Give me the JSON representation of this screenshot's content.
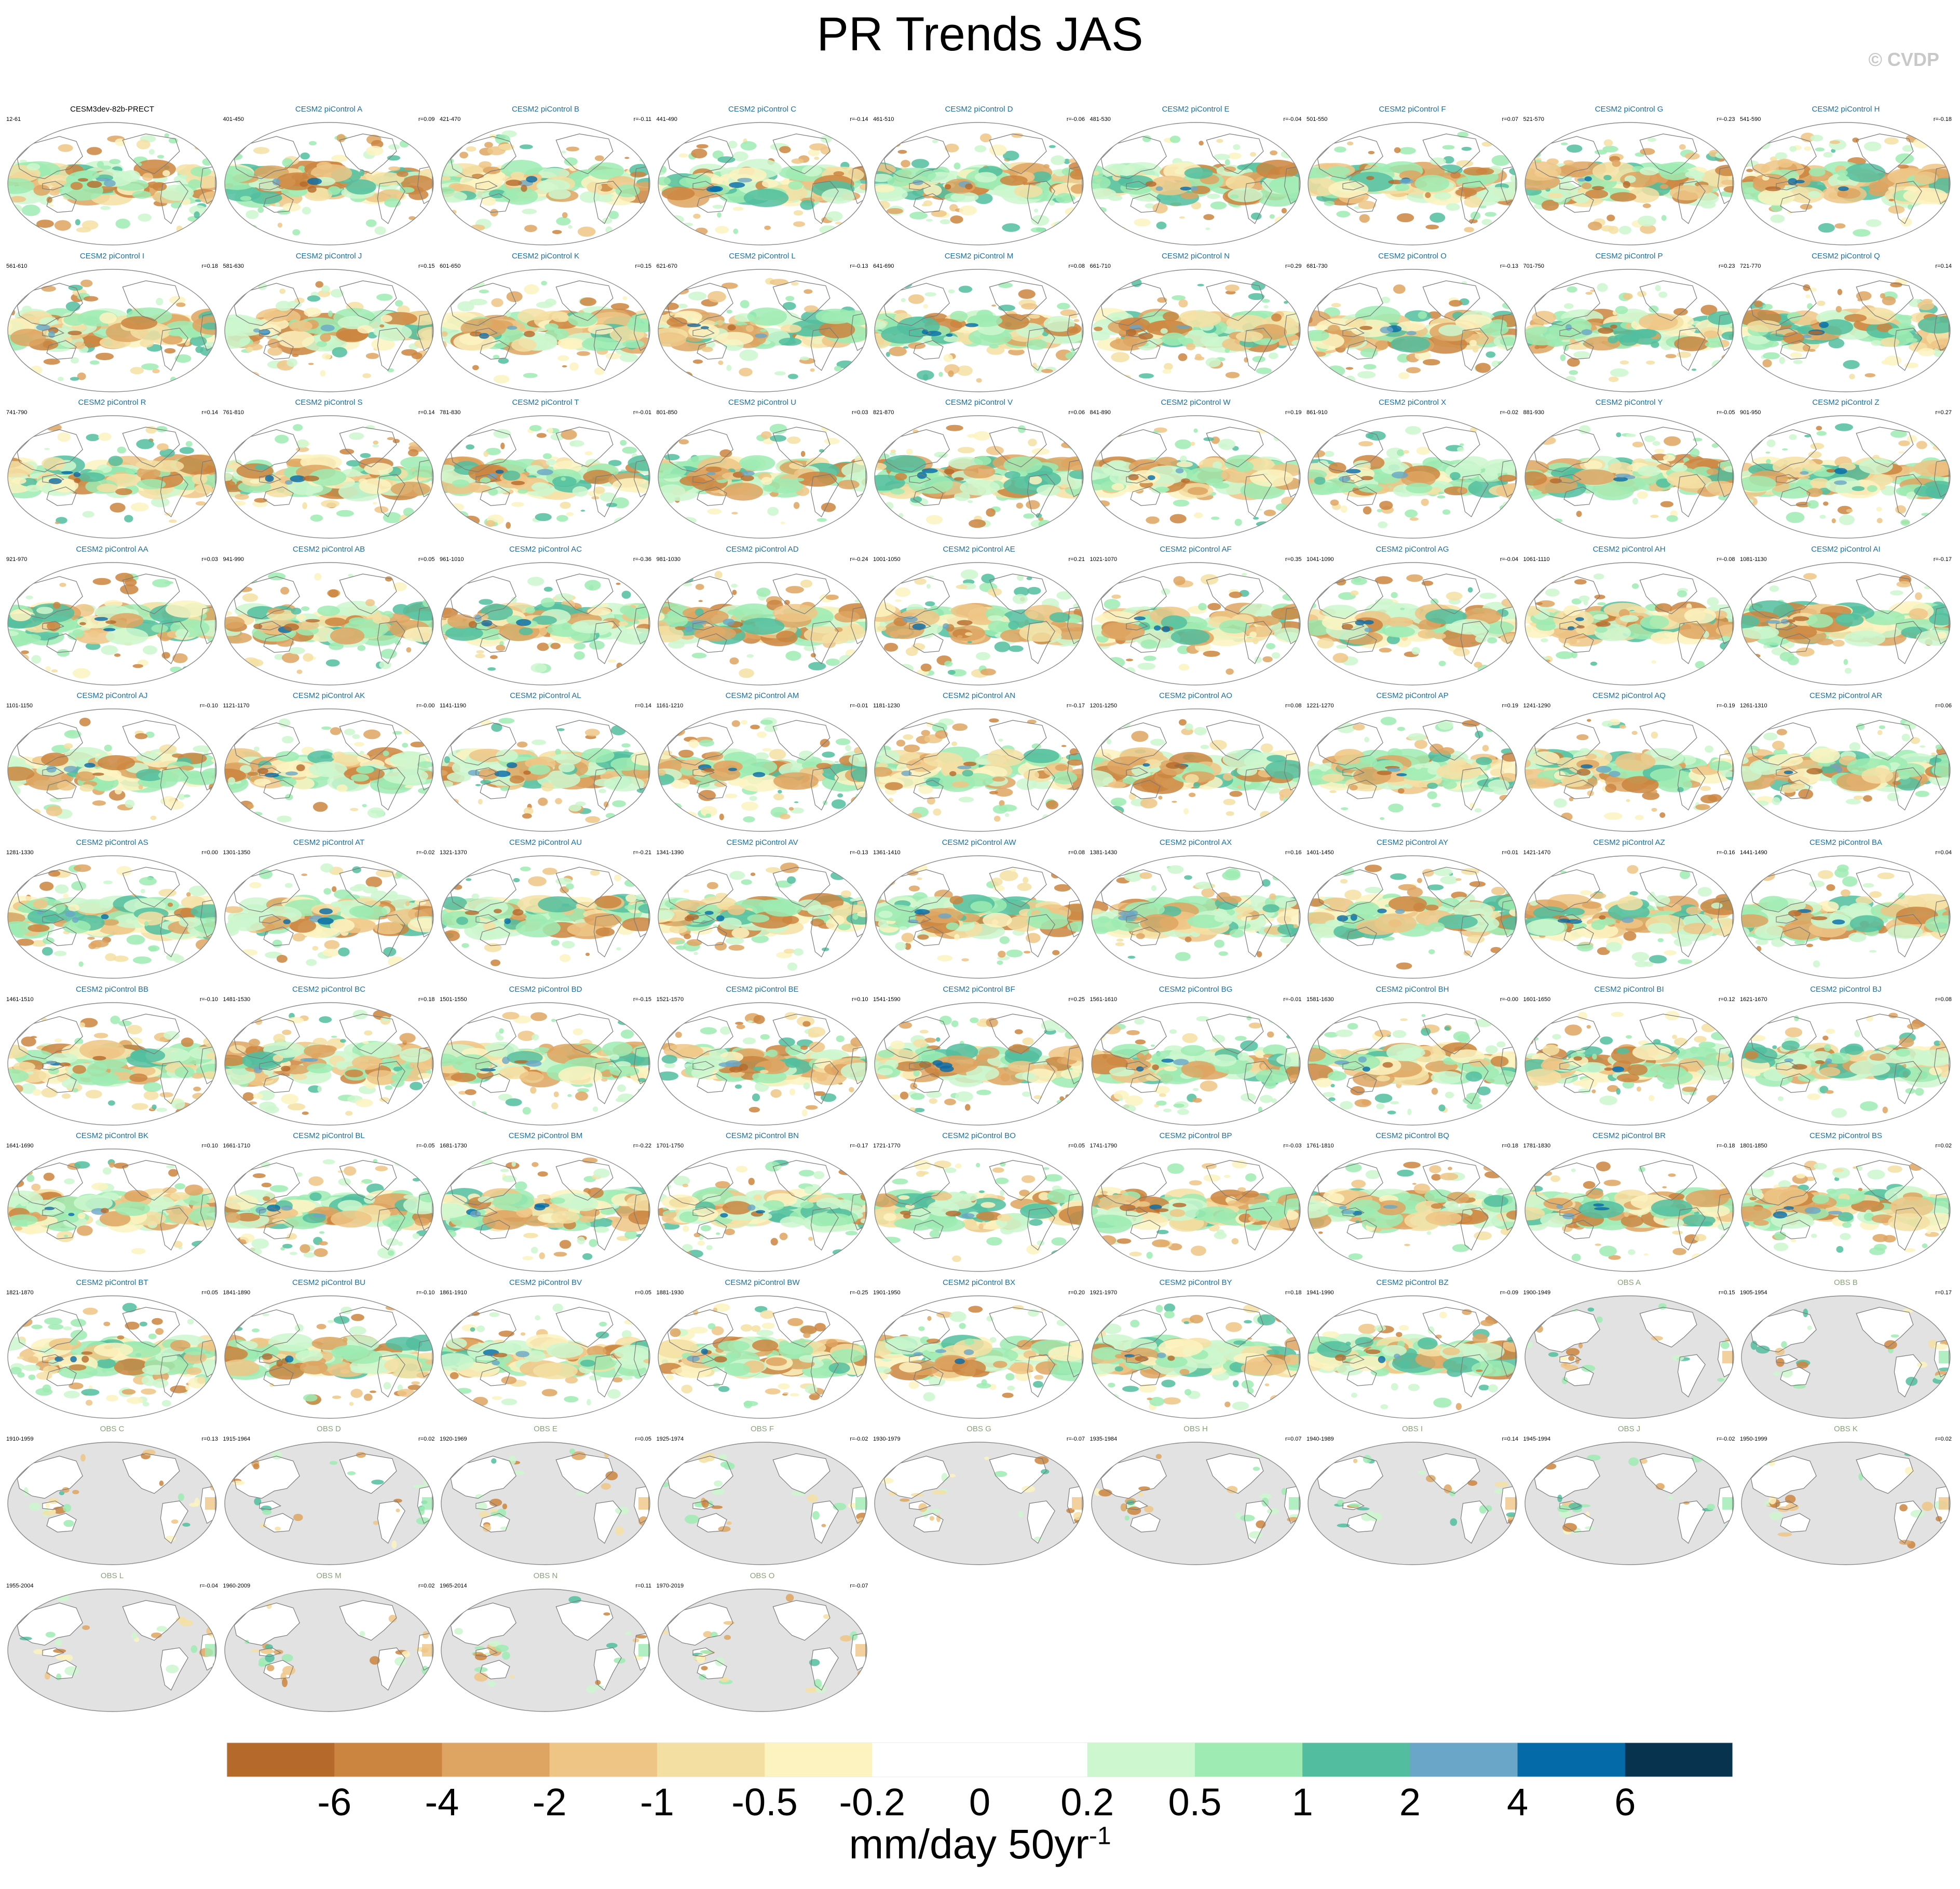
{
  "title": "PR Trends JAS",
  "credit": "© CVDP",
  "chart_data": {
    "type": "heatmap",
    "title": "PR Trends JAS",
    "map_projection": "global Robinson-like, Pacific-centered",
    "colorbar": {
      "units_base": "mm/day 50yr",
      "units_superscript": "-1",
      "tick_labels": [
        "-6",
        "-4",
        "-2",
        "-1",
        "-0.5",
        "-0.2",
        "0",
        "0.2",
        "0.5",
        "1",
        "2",
        "4",
        "6"
      ],
      "levels": [
        -6,
        -4,
        -2,
        -1,
        -0.5,
        -0.2,
        0,
        0.2,
        0.5,
        1,
        2,
        4,
        6
      ],
      "colors": [
        "#b5692b",
        "#cb8540",
        "#dea462",
        "#efc586",
        "#f4dfa3",
        "#fdf3c1",
        "#ffffff",
        "#ffffff",
        "#ccf7cf",
        "#9eebb3",
        "#52be9f",
        "#6aa6c7",
        "#056aa8",
        "#08334f"
      ]
    },
    "panels": [
      {
        "title": "CESM3dev-82b-PRECT",
        "period": "12-61",
        "r": "",
        "kind": "ref"
      },
      {
        "title": "CESM2 piControl A",
        "period": "401-450",
        "r": "r=0.09",
        "kind": "model"
      },
      {
        "title": "CESM2 piControl B",
        "period": "421-470",
        "r": "r=-0.11",
        "kind": "model"
      },
      {
        "title": "CESM2 piControl C",
        "period": "441-490",
        "r": "r=-0.14",
        "kind": "model"
      },
      {
        "title": "CESM2 piControl D",
        "period": "461-510",
        "r": "r=-0.06",
        "kind": "model"
      },
      {
        "title": "CESM2 piControl E",
        "period": "481-530",
        "r": "r=-0.04",
        "kind": "model"
      },
      {
        "title": "CESM2 piControl F",
        "period": "501-550",
        "r": "r=0.07",
        "kind": "model"
      },
      {
        "title": "CESM2 piControl G",
        "period": "521-570",
        "r": "r=-0.23",
        "kind": "model"
      },
      {
        "title": "CESM2 piControl H",
        "period": "541-590",
        "r": "r=-0.18",
        "kind": "model"
      },
      {
        "title": "CESM2 piControl I",
        "period": "561-610",
        "r": "r=0.18",
        "kind": "model"
      },
      {
        "title": "CESM2 piControl J",
        "period": "581-630",
        "r": "r=0.15",
        "kind": "model"
      },
      {
        "title": "CESM2 piControl K",
        "period": "601-650",
        "r": "r=0.15",
        "kind": "model"
      },
      {
        "title": "CESM2 piControl L",
        "period": "621-670",
        "r": "r=-0.13",
        "kind": "model"
      },
      {
        "title": "CESM2 piControl M",
        "period": "641-690",
        "r": "r=0.08",
        "kind": "model"
      },
      {
        "title": "CESM2 piControl N",
        "period": "661-710",
        "r": "r=0.29",
        "kind": "model"
      },
      {
        "title": "CESM2 piControl O",
        "period": "681-730",
        "r": "r=-0.13",
        "kind": "model"
      },
      {
        "title": "CESM2 piControl P",
        "period": "701-750",
        "r": "r=0.23",
        "kind": "model"
      },
      {
        "title": "CESM2 piControl Q",
        "period": "721-770",
        "r": "r=0.14",
        "kind": "model"
      },
      {
        "title": "CESM2 piControl R",
        "period": "741-790",
        "r": "r=0.14",
        "kind": "model"
      },
      {
        "title": "CESM2 piControl S",
        "period": "761-810",
        "r": "r=0.14",
        "kind": "model"
      },
      {
        "title": "CESM2 piControl T",
        "period": "781-830",
        "r": "r=-0.01",
        "kind": "model"
      },
      {
        "title": "CESM2 piControl U",
        "period": "801-850",
        "r": "r=0.03",
        "kind": "model"
      },
      {
        "title": "CESM2 piControl V",
        "period": "821-870",
        "r": "r=0.06",
        "kind": "model"
      },
      {
        "title": "CESM2 piControl W",
        "period": "841-890",
        "r": "r=0.19",
        "kind": "model"
      },
      {
        "title": "CESM2 piControl X",
        "period": "861-910",
        "r": "r=-0.02",
        "kind": "model"
      },
      {
        "title": "CESM2 piControl Y",
        "period": "881-930",
        "r": "r=-0.05",
        "kind": "model"
      },
      {
        "title": "CESM2 piControl Z",
        "period": "901-950",
        "r": "r=0.27",
        "kind": "model"
      },
      {
        "title": "CESM2 piControl AA",
        "period": "921-970",
        "r": "r=0.03",
        "kind": "model"
      },
      {
        "title": "CESM2 piControl AB",
        "period": "941-990",
        "r": "r=0.05",
        "kind": "model"
      },
      {
        "title": "CESM2 piControl AC",
        "period": "961-1010",
        "r": "r=-0.36",
        "kind": "model"
      },
      {
        "title": "CESM2 piControl AD",
        "period": "981-1030",
        "r": "r=-0.24",
        "kind": "model"
      },
      {
        "title": "CESM2 piControl AE",
        "period": "1001-1050",
        "r": "r=0.21",
        "kind": "model"
      },
      {
        "title": "CESM2 piControl AF",
        "period": "1021-1070",
        "r": "r=0.35",
        "kind": "model"
      },
      {
        "title": "CESM2 piControl AG",
        "period": "1041-1090",
        "r": "r=-0.04",
        "kind": "model"
      },
      {
        "title": "CESM2 piControl AH",
        "period": "1061-1110",
        "r": "r=-0.08",
        "kind": "model"
      },
      {
        "title": "CESM2 piControl AI",
        "period": "1081-1130",
        "r": "r=-0.17",
        "kind": "model"
      },
      {
        "title": "CESM2 piControl AJ",
        "period": "1101-1150",
        "r": "r=-0.10",
        "kind": "model"
      },
      {
        "title": "CESM2 piControl AK",
        "period": "1121-1170",
        "r": "r=-0.00",
        "kind": "model"
      },
      {
        "title": "CESM2 piControl AL",
        "period": "1141-1190",
        "r": "r=0.14",
        "kind": "model"
      },
      {
        "title": "CESM2 piControl AM",
        "period": "1161-1210",
        "r": "r=-0.01",
        "kind": "model"
      },
      {
        "title": "CESM2 piControl AN",
        "period": "1181-1230",
        "r": "r=-0.17",
        "kind": "model"
      },
      {
        "title": "CESM2 piControl AO",
        "period": "1201-1250",
        "r": "r=0.08",
        "kind": "model"
      },
      {
        "title": "CESM2 piControl AP",
        "period": "1221-1270",
        "r": "r=0.19",
        "kind": "model"
      },
      {
        "title": "CESM2 piControl AQ",
        "period": "1241-1290",
        "r": "r=-0.19",
        "kind": "model"
      },
      {
        "title": "CESM2 piControl AR",
        "period": "1261-1310",
        "r": "r=0.06",
        "kind": "model"
      },
      {
        "title": "CESM2 piControl AS",
        "period": "1281-1330",
        "r": "r=0.00",
        "kind": "model"
      },
      {
        "title": "CESM2 piControl AT",
        "period": "1301-1350",
        "r": "r=-0.02",
        "kind": "model"
      },
      {
        "title": "CESM2 piControl AU",
        "period": "1321-1370",
        "r": "r=-0.21",
        "kind": "model"
      },
      {
        "title": "CESM2 piControl AV",
        "period": "1341-1390",
        "r": "r=-0.13",
        "kind": "model"
      },
      {
        "title": "CESM2 piControl AW",
        "period": "1361-1410",
        "r": "r=0.08",
        "kind": "model"
      },
      {
        "title": "CESM2 piControl AX",
        "period": "1381-1430",
        "r": "r=0.16",
        "kind": "model"
      },
      {
        "title": "CESM2 piControl AY",
        "period": "1401-1450",
        "r": "r=0.01",
        "kind": "model"
      },
      {
        "title": "CESM2 piControl AZ",
        "period": "1421-1470",
        "r": "r=-0.16",
        "kind": "model"
      },
      {
        "title": "CESM2 piControl BA",
        "period": "1441-1490",
        "r": "r=0.04",
        "kind": "model"
      },
      {
        "title": "CESM2 piControl BB",
        "period": "1461-1510",
        "r": "r=-0.10",
        "kind": "model"
      },
      {
        "title": "CESM2 piControl BC",
        "period": "1481-1530",
        "r": "r=0.18",
        "kind": "model"
      },
      {
        "title": "CESM2 piControl BD",
        "period": "1501-1550",
        "r": "r=-0.15",
        "kind": "model"
      },
      {
        "title": "CESM2 piControl BE",
        "period": "1521-1570",
        "r": "r=0.10",
        "kind": "model"
      },
      {
        "title": "CESM2 piControl BF",
        "period": "1541-1590",
        "r": "r=0.25",
        "kind": "model"
      },
      {
        "title": "CESM2 piControl BG",
        "period": "1561-1610",
        "r": "r=-0.01",
        "kind": "model"
      },
      {
        "title": "CESM2 piControl BH",
        "period": "1581-1630",
        "r": "r=-0.00",
        "kind": "model"
      },
      {
        "title": "CESM2 piControl BI",
        "period": "1601-1650",
        "r": "r=0.12",
        "kind": "model"
      },
      {
        "title": "CESM2 piControl BJ",
        "period": "1621-1670",
        "r": "r=0.08",
        "kind": "model"
      },
      {
        "title": "CESM2 piControl BK",
        "period": "1641-1690",
        "r": "r=0.10",
        "kind": "model"
      },
      {
        "title": "CESM2 piControl BL",
        "period": "1661-1710",
        "r": "r=-0.05",
        "kind": "model"
      },
      {
        "title": "CESM2 piControl BM",
        "period": "1681-1730",
        "r": "r=-0.22",
        "kind": "model"
      },
      {
        "title": "CESM2 piControl BN",
        "period": "1701-1750",
        "r": "r=-0.17",
        "kind": "model"
      },
      {
        "title": "CESM2 piControl BO",
        "period": "1721-1770",
        "r": "r=0.05",
        "kind": "model"
      },
      {
        "title": "CESM2 piControl BP",
        "period": "1741-1790",
        "r": "r=-0.03",
        "kind": "model"
      },
      {
        "title": "CESM2 piControl BQ",
        "period": "1761-1810",
        "r": "r=0.18",
        "kind": "model"
      },
      {
        "title": "CESM2 piControl BR",
        "period": "1781-1830",
        "r": "r=-0.18",
        "kind": "model"
      },
      {
        "title": "CESM2 piControl BS",
        "period": "1801-1850",
        "r": "r=0.02",
        "kind": "model"
      },
      {
        "title": "CESM2 piControl BT",
        "period": "1821-1870",
        "r": "r=0.05",
        "kind": "model"
      },
      {
        "title": "CESM2 piControl BU",
        "period": "1841-1890",
        "r": "r=-0.10",
        "kind": "model"
      },
      {
        "title": "CESM2 piControl BV",
        "period": "1861-1910",
        "r": "r=0.05",
        "kind": "model"
      },
      {
        "title": "CESM2 piControl BW",
        "period": "1881-1930",
        "r": "r=-0.25",
        "kind": "model"
      },
      {
        "title": "CESM2 piControl BX",
        "period": "1901-1950",
        "r": "r=0.20",
        "kind": "model"
      },
      {
        "title": "CESM2 piControl BY",
        "period": "1921-1970",
        "r": "r=0.18",
        "kind": "model"
      },
      {
        "title": "CESM2 piControl BZ",
        "period": "1941-1990",
        "r": "r=-0.09",
        "kind": "model"
      },
      {
        "title": "OBS A",
        "period": "1900-1949",
        "r": "r=0.15",
        "kind": "obs"
      },
      {
        "title": "OBS B",
        "period": "1905-1954",
        "r": "r=0.17",
        "kind": "obs"
      },
      {
        "title": "OBS C",
        "period": "1910-1959",
        "r": "r=0.13",
        "kind": "obs"
      },
      {
        "title": "OBS D",
        "period": "1915-1964",
        "r": "r=0.02",
        "kind": "obs"
      },
      {
        "title": "OBS E",
        "period": "1920-1969",
        "r": "r=0.05",
        "kind": "obs"
      },
      {
        "title": "OBS F",
        "period": "1925-1974",
        "r": "r=-0.02",
        "kind": "obs"
      },
      {
        "title": "OBS G",
        "period": "1930-1979",
        "r": "r=-0.07",
        "kind": "obs"
      },
      {
        "title": "OBS H",
        "period": "1935-1984",
        "r": "r=0.07",
        "kind": "obs"
      },
      {
        "title": "OBS I",
        "period": "1940-1989",
        "r": "r=0.14",
        "kind": "obs"
      },
      {
        "title": "OBS J",
        "period": "1945-1994",
        "r": "r=-0.02",
        "kind": "obs"
      },
      {
        "title": "OBS K",
        "period": "1950-1999",
        "r": "r=0.02",
        "kind": "obs"
      },
      {
        "title": "OBS L",
        "period": "1955-2004",
        "r": "r=-0.04",
        "kind": "obs"
      },
      {
        "title": "OBS M",
        "period": "1960-2009",
        "r": "r=0.02",
        "kind": "obs"
      },
      {
        "title": "OBS N",
        "period": "1965-2014",
        "r": "r=0.11",
        "kind": "obs"
      },
      {
        "title": "OBS O",
        "period": "1970-2019",
        "r": "r=-0.07",
        "kind": "obs"
      }
    ]
  },
  "colors": {
    "model_title": "#1a6fa0",
    "obs_title": "#8aa07a",
    "ref_title": "#000000",
    "land_mask": "#e2e2e2",
    "coast": "#7a7a7a"
  }
}
